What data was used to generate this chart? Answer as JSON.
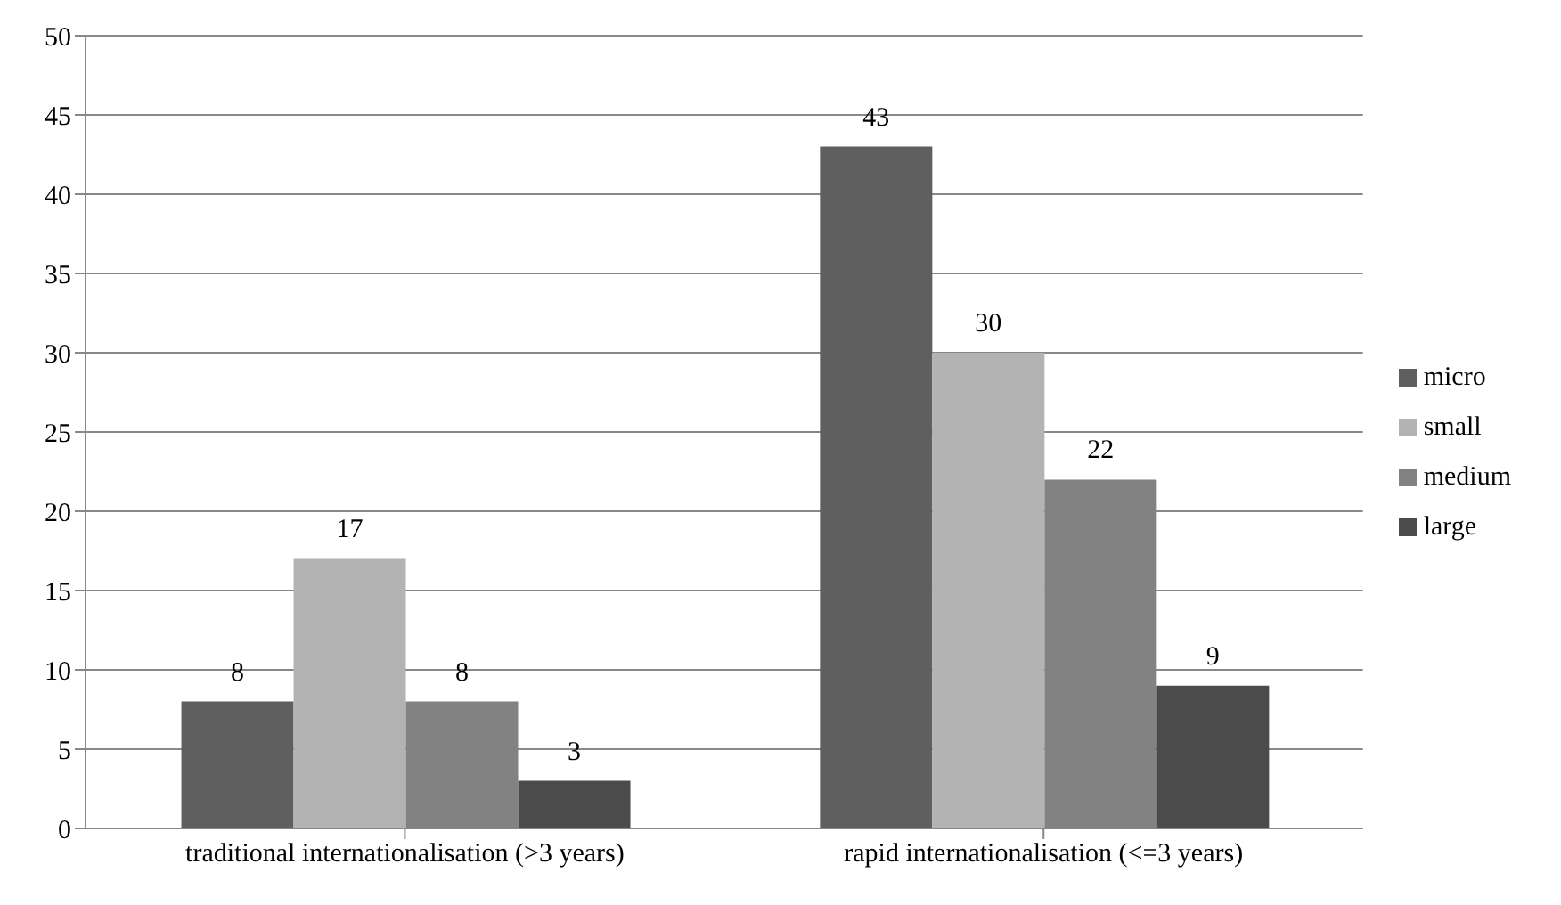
{
  "chart_data": {
    "type": "bar",
    "categories": [
      "traditional internationalisation (>3 years)",
      "rapid internationalisation (<=3 years)"
    ],
    "series": [
      {
        "name": "micro",
        "color": "#5f5f5f",
        "values": [
          8,
          43
        ]
      },
      {
        "name": "small",
        "color": "#b3b3b3",
        "values": [
          17,
          30
        ]
      },
      {
        "name": "medium",
        "color": "#828282",
        "values": [
          8,
          22
        ]
      },
      {
        "name": "large",
        "color": "#4b4b4b",
        "values": [
          3,
          9
        ]
      }
    ],
    "ylim": [
      0,
      50
    ],
    "yticks": [
      0,
      5,
      10,
      15,
      20,
      25,
      30,
      35,
      40,
      45,
      50
    ],
    "grid": "y",
    "legend": "right",
    "data_labels": true
  }
}
